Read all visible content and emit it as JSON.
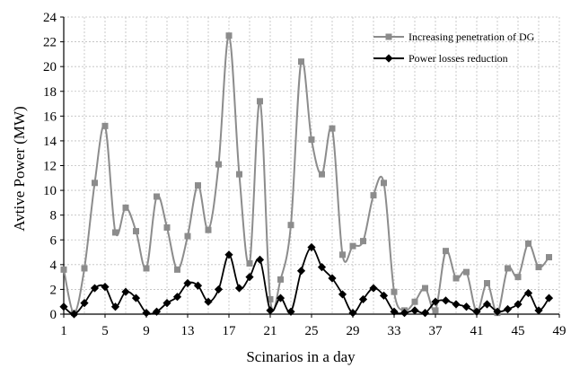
{
  "chart_data": {
    "type": "line",
    "title": "",
    "xlabel": "Scinarios in a day",
    "ylabel": "Avtive Power (MW)",
    "xlim": [
      1,
      49
    ],
    "ylim": [
      0,
      24
    ],
    "x_ticks": [
      "1",
      "5",
      "9",
      "13",
      "17",
      "21",
      "25",
      "29",
      "33",
      "37",
      "41",
      "45",
      "49"
    ],
    "y_ticks": [
      "0",
      "2",
      "4",
      "6",
      "8",
      "10",
      "12",
      "14",
      "16",
      "18",
      "20",
      "22",
      "24"
    ],
    "grid": true,
    "legend_position": "top-right",
    "x": [
      1,
      2,
      3,
      4,
      5,
      6,
      7,
      8,
      9,
      10,
      11,
      12,
      13,
      14,
      15,
      16,
      17,
      18,
      19,
      20,
      21,
      22,
      23,
      24,
      25,
      26,
      27,
      28,
      29,
      30,
      31,
      32,
      33,
      34,
      35,
      36,
      37,
      38,
      39,
      40,
      41,
      42,
      43,
      44,
      45,
      46,
      47,
      48
    ],
    "series": [
      {
        "name": "Increasing penetration of DG",
        "color": "#8c8c8c",
        "marker": "square",
        "values": [
          3.6,
          0.1,
          3.7,
          10.6,
          15.2,
          6.6,
          8.6,
          6.7,
          3.7,
          9.5,
          7.0,
          3.6,
          6.3,
          10.4,
          6.8,
          12.1,
          22.5,
          11.3,
          4.1,
          17.2,
          1.2,
          2.8,
          7.2,
          20.4,
          14.1,
          11.3,
          15.0,
          4.8,
          5.5,
          5.9,
          9.6,
          10.6,
          1.8,
          0.3,
          1.0,
          2.1,
          0.3,
          5.1,
          2.9,
          3.4,
          0.2,
          2.5,
          0.1,
          3.7,
          3.0,
          5.7,
          3.8,
          4.6
        ]
      },
      {
        "name": "Power losses reduction",
        "color": "#000000",
        "marker": "diamond",
        "values": [
          0.6,
          0.0,
          0.9,
          2.1,
          2.2,
          0.6,
          1.8,
          1.3,
          0.1,
          0.2,
          0.9,
          1.4,
          2.5,
          2.3,
          1.0,
          2.0,
          4.8,
          2.1,
          3.0,
          4.4,
          0.3,
          1.3,
          0.2,
          3.5,
          5.4,
          3.8,
          2.9,
          1.6,
          0.1,
          1.2,
          2.1,
          1.5,
          0.2,
          0.1,
          0.3,
          0.1,
          1.0,
          1.1,
          0.8,
          0.6,
          0.2,
          0.8,
          0.2,
          0.4,
          0.8,
          1.7,
          0.3,
          1.3
        ]
      }
    ]
  }
}
